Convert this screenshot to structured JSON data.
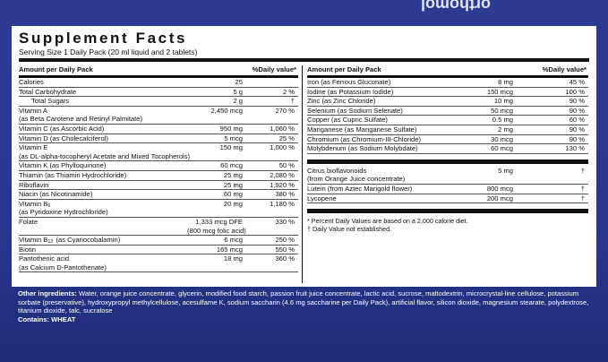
{
  "brand": "orthomol",
  "title": "Supplement Facts",
  "serving": "Serving Size 1 Daily Pack  (20 ml liquid and 2 tablets)",
  "left": {
    "header": {
      "amount": "Amount per Daily Pack",
      "dv": "%Daily value*"
    },
    "rows": [
      {
        "name": "Calories",
        "amount": "25"
      },
      {
        "name": "Total Carbohydrate",
        "amount": "5 g",
        "dv": "2 %"
      },
      {
        "name": "Total Sugars",
        "amount": "2 g",
        "dv": "†",
        "indent": true
      },
      {
        "name": "Vitamin A",
        "amount": "2,450 mcg",
        "dv": "270 %",
        "note": "(as Beta Carotene and Retinyl Palmitate)"
      },
      {
        "name": "Vitamin C (as Ascorbic Acid)",
        "amount": "950 mg",
        "dv": "1,060 %"
      },
      {
        "name": "Vitamin D (as Cholecalciferol)",
        "amount": "5 mcg",
        "dv": "25 %"
      },
      {
        "name": "Vitamin E",
        "amount": "150 mg",
        "dv": "1,000 %",
        "note": "(as DL-alpha-tocopheryl Acetate and Mixed Tocopherols)"
      },
      {
        "name": "Vitamin K (as Phylloquinone)",
        "amount": "60 mcg",
        "dv": "50 %"
      },
      {
        "name": "Thiamin (as Thiamin Hydrochloride)",
        "amount": "25 mg",
        "dv": "2,080 %"
      },
      {
        "name": "Riboflavin",
        "amount": "25 mg",
        "dv": "1,920 %"
      },
      {
        "name": "Niacin (as Nicotinamide)",
        "amount": "60 mg",
        "dv": "380 %"
      },
      {
        "name": "Vitamin B",
        "sub": "6",
        "amount": "20 mg",
        "dv": "1,180 %",
        "note": "(as Pyridoxine Hydrochloride)"
      },
      {
        "name": "Folate",
        "amount": "1,333 mcg DFE",
        "dv": "330 %",
        "amount_note": "(800 mcg folic acid)"
      },
      {
        "name": "Vitamin B",
        "sub": "12",
        "name_rest": "(as Cyanocobalamin)",
        "amount": "6 mcg",
        "dv": "250 %"
      },
      {
        "name": "Biotin",
        "amount": "165 mcg",
        "dv": "550 %"
      },
      {
        "name": "Pantothenic acid",
        "amount": "18 mg",
        "dv": "360 %",
        "note": "(as Calcium D-Pantothenate)"
      }
    ]
  },
  "right": {
    "header": {
      "amount": "Amount per Daily Pack",
      "dv": "%Daily value*"
    },
    "rows": [
      {
        "name": "Iron (as Ferrous Gluconate)",
        "amount": "8 mg",
        "dv": "45 %"
      },
      {
        "name": "Iodine (as Potassium Iodide)",
        "amount": "150 mcg",
        "dv": "100 %"
      },
      {
        "name": "Zinc (as Zinc Chloride)",
        "amount": "10 mg",
        "dv": "90 %"
      },
      {
        "name": "Selenium (as Sodium Selenate)",
        "amount": "50 mcg",
        "dv": "90 %"
      },
      {
        "name": "Copper (as Cupric Sulfate)",
        "amount": "0.5 mg",
        "dv": "60 %"
      },
      {
        "name": "Manganese (as Manganese Sulfate)",
        "amount": "2 mg",
        "dv": "90 %"
      },
      {
        "name": "Chromium (as Chromium-III-Chloride)",
        "amount": "30 mcg",
        "dv": "90 %"
      },
      {
        "name": "Molybdenum (as Sodium Molybdate)",
        "amount": "60 mcg",
        "dv": "130 %"
      }
    ],
    "rows2": [
      {
        "name": "Citrus bioflavonoids",
        "amount": "5 mg",
        "dv": "†",
        "note": "(from Orange Juice concentrate)"
      },
      {
        "name": "Lutein (from Aztec Marigold flower)",
        "amount": "800 mcg",
        "dv": "†"
      },
      {
        "name": "Lycopene",
        "amount": "200 mcg",
        "dv": "†"
      }
    ],
    "footnotes": [
      "*  Percent Daily Values are based on a 2,000 calorie diet.",
      "†  Daily Value not established."
    ]
  },
  "ingredients": {
    "label": "Other ingredients:",
    "text": "Water, orange juice concentrate, glycerin, modified food starch, passion fruit juice concentrate, lactic acid, sucrose, maltodextrin, microcrystal-line cellulose, potassium sorbate (preservative), hydroxypropyl methylcellulose, acesulfame K, sodium saccharin (4.6 mg saccharine per Daily Pack), artificial flavor, silicon dioxide, magnesium stearate, polydextrose, titanium dioxide, talc, sucralose"
  },
  "contains": {
    "label": "Contains:",
    "text": "WHEAT"
  }
}
